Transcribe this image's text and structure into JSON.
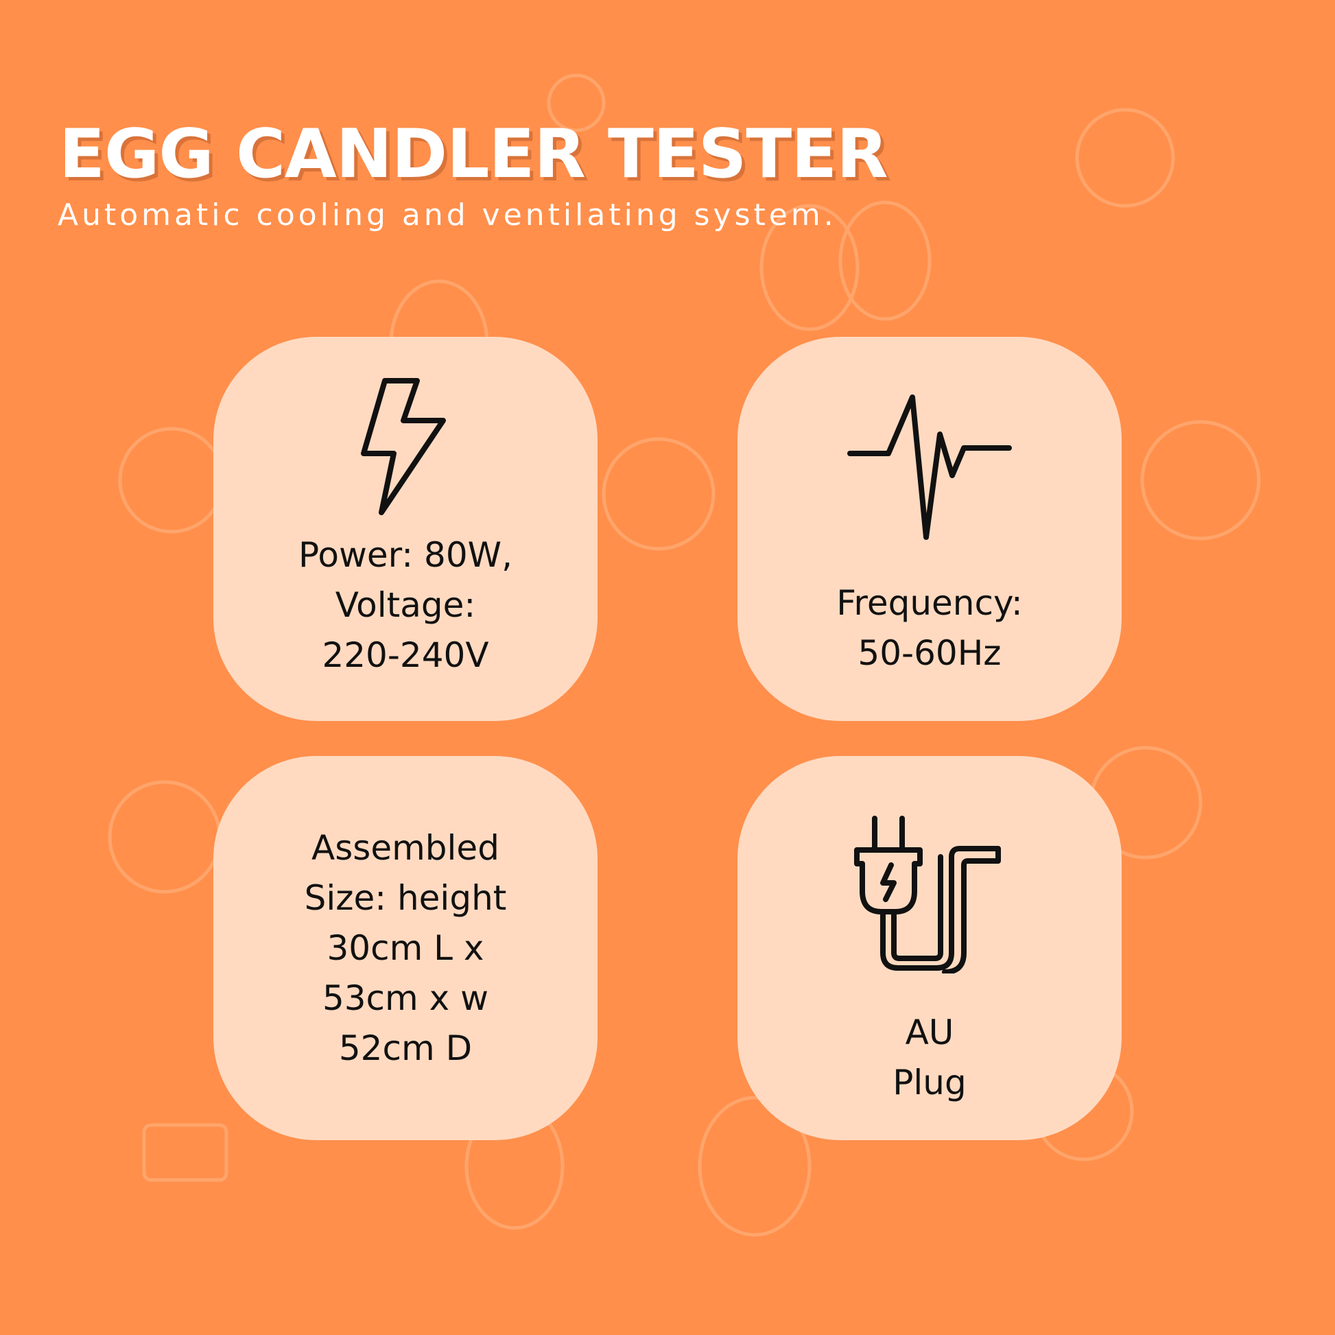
{
  "header": {
    "title": "EGG CANDLER TESTER",
    "subtitle": "Automatic cooling and ventilating system."
  },
  "colors": {
    "background": "#FF8F4B",
    "card": "#FFDAC1",
    "text": "#111111"
  },
  "features": [
    {
      "icon": "lightning-bolt-icon",
      "text": "Power: 80W,\nVoltage:\n220-240V"
    },
    {
      "icon": "pulse-wave-icon",
      "text": "Frequency:\n50-60Hz"
    },
    {
      "icon": "",
      "text": "Assembled\nSize: height\n30cm L x\n53cm x w\n52cm D"
    },
    {
      "icon": "power-plug-icon",
      "text": "AU\nPlug"
    }
  ]
}
